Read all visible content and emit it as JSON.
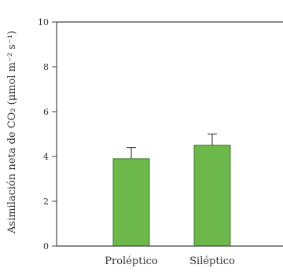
{
  "chart_data": {
    "type": "bar",
    "categories": [
      "Proléptico",
      "Siléptico"
    ],
    "values": [
      3.9,
      4.5
    ],
    "error_upper": [
      4.4,
      5.0
    ],
    "ylabel": "Asimilación neta de CO₂ (μmol m⁻² s⁻¹)",
    "yticks": [
      0,
      2,
      4,
      6,
      8,
      10
    ],
    "ylim": [
      0,
      10
    ],
    "grid": false,
    "bar_color": "#6cb84a",
    "bar_edge_color": "#3f7a2a",
    "axis_color": "#444444"
  }
}
